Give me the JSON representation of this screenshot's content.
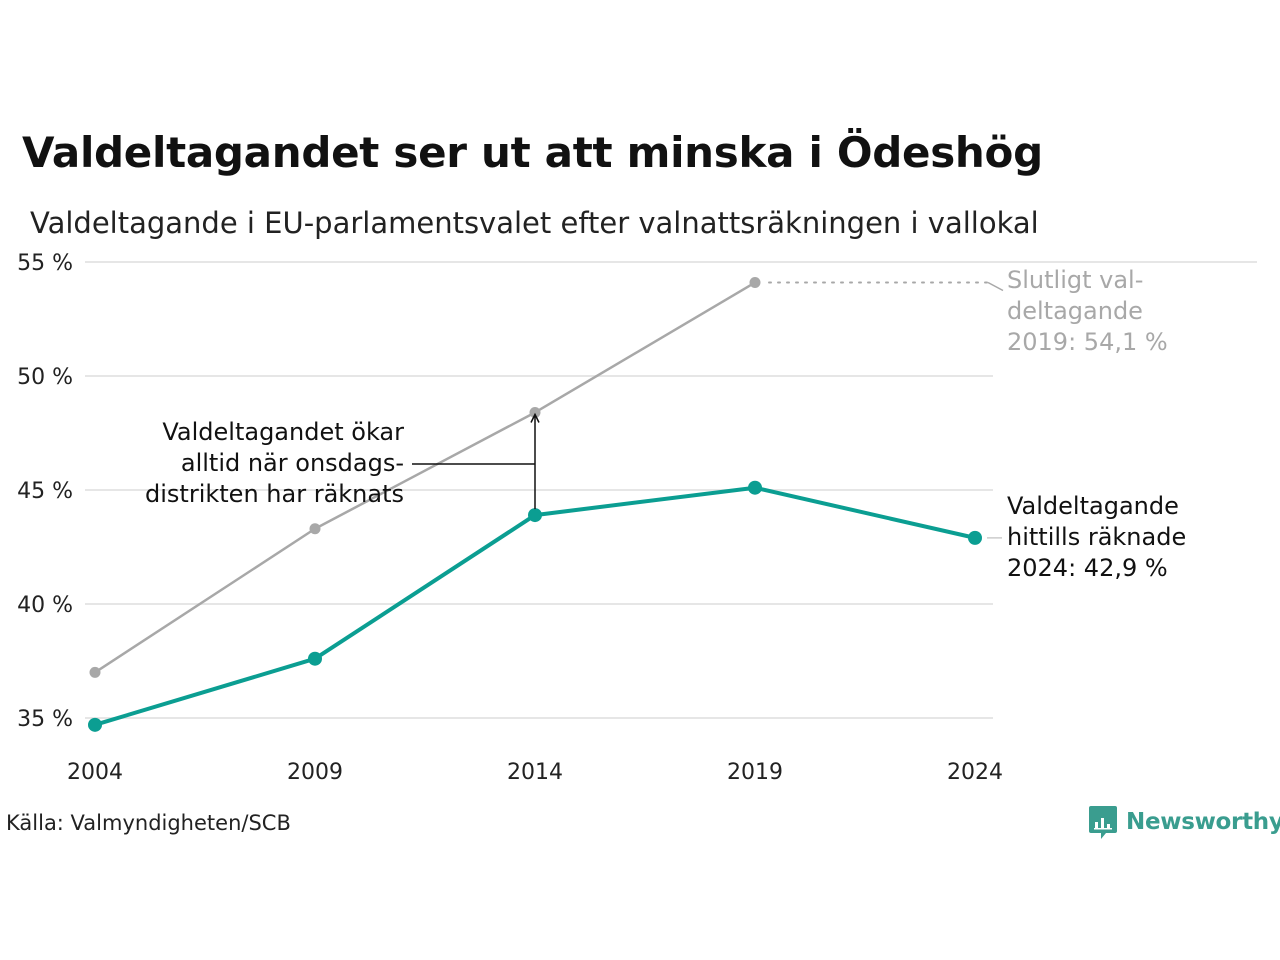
{
  "title": "Valdeltagandet ser ut att minska i Ödeshög",
  "subtitle": "Valdeltagande i EU-parlamentsvalet efter valnattsräkningen i vallokal",
  "source": "Källa: Valmyndigheten/SCB",
  "brand": "Newsworthy",
  "colors": {
    "teal": "#0b9e92",
    "grey": "#a8a8a8",
    "grid": "#e6e6e6",
    "brand": "#3a9d8f"
  },
  "annotations": {
    "left": "Valdeltagandet ökar\nalltid när onsdags-\ndistrikten har räknats",
    "grey_end": "Slutligt val-\ndeltagande\n2019: 54,1 %",
    "teal_end": "Valdeltagande\nhittills räknade\n2024: 42,9 %"
  },
  "chart_data": {
    "type": "line",
    "categories": [
      "2004",
      "2009",
      "2014",
      "2019",
      "2024"
    ],
    "ylim": [
      35,
      55
    ],
    "yticks": [
      35,
      40,
      45,
      50,
      55
    ],
    "ytick_labels": [
      "35 %",
      "40 %",
      "45 %",
      "50 %",
      "55 %"
    ],
    "grid": true,
    "legend": "none",
    "series": [
      {
        "key": "final",
        "values": [
          37.0,
          43.3,
          48.4,
          54.1,
          null
        ],
        "color": "#a8a8a8"
      },
      {
        "key": "election_night",
        "values": [
          34.7,
          37.6,
          43.9,
          45.1,
          42.9
        ],
        "color": "#0b9e92"
      }
    ]
  }
}
